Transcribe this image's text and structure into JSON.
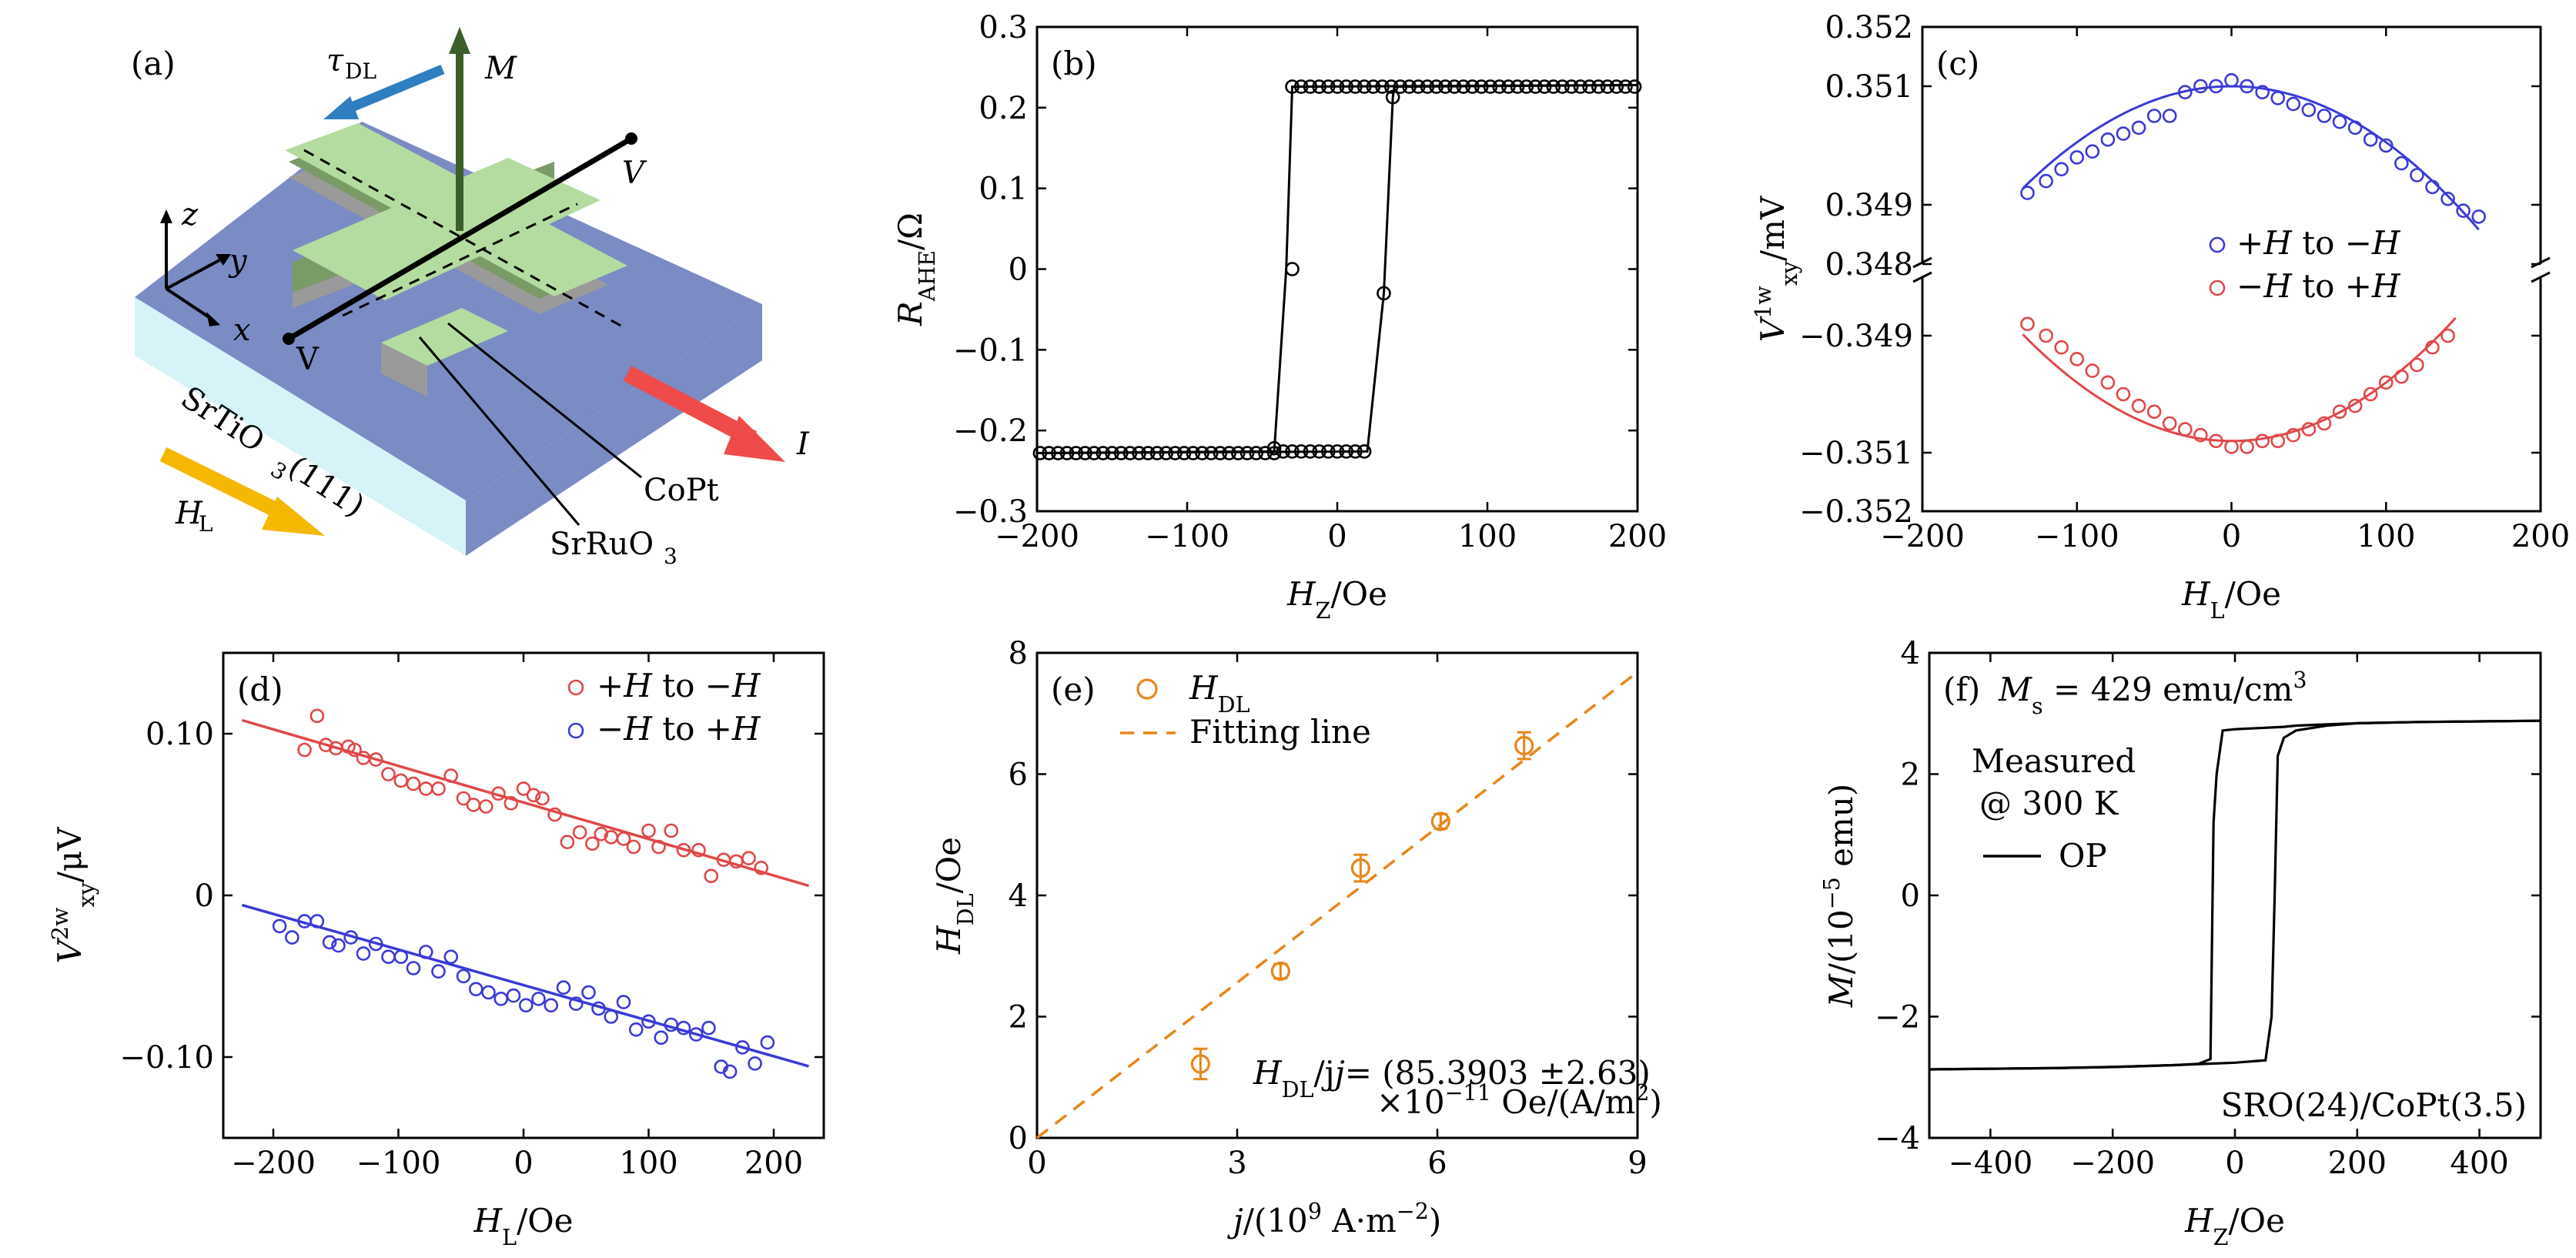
{
  "figure": {
    "panel_a": {
      "label": "(a)",
      "labels": {
        "tau": "τ",
        "tau_sub": "DL",
        "m": "M",
        "v_top": "V",
        "v_bottom": "V",
        "z": "z",
        "y": "y",
        "x": "x",
        "substrate_main": "SrTiO",
        "substrate_sub": "3",
        "substrate_tail": "(111)",
        "current": "I",
        "field": "H",
        "field_sub": "L",
        "copt": "CoPt",
        "sro_main": "SrRuO",
        "sro_sub": "3"
      },
      "colors": {
        "substrate_top": "#7b8bc4",
        "substrate_front": "#d6f4f8",
        "copt": "#b4dca0",
        "copt_side": "#7a9a66",
        "sro_side": "#9a9a9a",
        "m_arrow": "#3b5e2a",
        "tau_arrow": "#2f7fc0",
        "current_arrow": "#ef4b4b",
        "field_arrow": "#f5b800"
      }
    }
  },
  "chart_data": [
    {
      "panel": "(b)",
      "type": "line",
      "xlabel_main": "H",
      "xlabel_sub": "Z",
      "xlabel_tail": "/Oe",
      "ylabel_main": "R",
      "ylabel_sub": "AHE",
      "ylabel_tail": "/Ω",
      "xlim": [
        -200,
        200
      ],
      "ylim": [
        -0.3,
        0.3
      ],
      "xticks": [
        -200,
        -100,
        0,
        100,
        200
      ],
      "yticks": [
        -0.3,
        -0.2,
        -0.1,
        0,
        0.1,
        0.2,
        0.3
      ],
      "xtick_labels": [
        "−200",
        "−100",
        "0",
        "100",
        "200"
      ],
      "ytick_labels": [
        "−0.3",
        "−0.2",
        "−0.1",
        "0",
        "0.1",
        "0.2",
        "0.3"
      ],
      "color": "#000000",
      "series": [
        {
          "x": [
            200,
            190,
            180,
            170,
            160,
            150,
            140,
            130,
            120,
            110,
            100,
            90,
            80,
            70,
            60,
            50,
            45,
            40,
            35,
            30,
            25,
            22,
            20,
            0,
            -20,
            -40,
            -60,
            -80,
            -100,
            -120,
            -140,
            -160,
            -180,
            -200
          ],
          "y": [
            0.228,
            0.228,
            0.228,
            0.228,
            0.228,
            0.228,
            0.228,
            0.228,
            0.228,
            0.228,
            0.228,
            0.228,
            0.228,
            0.228,
            0.228,
            0.228,
            0.228,
            0.228,
            0.228,
            0.228,
            0.228,
            0.228,
            0.228,
            0.228,
            0.228,
            0.228,
            0.228,
            0.228,
            0.228,
            0.228,
            0.228,
            0.228,
            0.228,
            0.228
          ]
        }
      ],
      "markers_upper": {
        "x": [
          -30,
          -24,
          -18,
          -12,
          -6,
          0,
          6,
          12,
          18,
          24,
          30,
          36,
          42,
          48,
          54,
          60,
          66,
          72,
          78,
          84,
          90,
          96,
          102,
          108,
          114,
          120,
          126,
          132,
          138,
          144,
          150,
          156,
          162,
          168,
          174,
          180,
          186,
          192,
          198
        ],
        "y": [
          0.226,
          0.226,
          0.226,
          0.226,
          0.226,
          0.226,
          0.226,
          0.226,
          0.226,
          0.226,
          0.226,
          0.226,
          0.226,
          0.226,
          0.226,
          0.226,
          0.226,
          0.226,
          0.226,
          0.226,
          0.226,
          0.226,
          0.226,
          0.226,
          0.226,
          0.226,
          0.226,
          0.226,
          0.226,
          0.226,
          0.226,
          0.226,
          0.226,
          0.226,
          0.226,
          0.226,
          0.226,
          0.226,
          0.226
        ]
      },
      "markers_lower": {
        "x": [
          -198,
          -192,
          -186,
          -180,
          -174,
          -168,
          -162,
          -156,
          -150,
          -144,
          -138,
          -132,
          -126,
          -120,
          -114,
          -108,
          -102,
          -96,
          -90,
          -84,
          -78,
          -72,
          -66,
          -60,
          -54,
          -48,
          -42,
          -36,
          -30,
          -24,
          -18,
          -12,
          -6,
          0,
          6,
          12,
          18
        ],
        "y": [
          -0.228,
          -0.228,
          -0.228,
          -0.228,
          -0.228,
          -0.228,
          -0.228,
          -0.228,
          -0.228,
          -0.228,
          -0.228,
          -0.228,
          -0.228,
          -0.228,
          -0.228,
          -0.228,
          -0.228,
          -0.228,
          -0.228,
          -0.228,
          -0.228,
          -0.228,
          -0.228,
          -0.228,
          -0.228,
          -0.228,
          -0.228,
          -0.226,
          -0.226,
          -0.226,
          -0.226,
          -0.226,
          -0.226,
          -0.226,
          -0.226,
          -0.226,
          -0.226
        ]
      },
      "markers_transition": {
        "x": [
          -42,
          -30,
          31,
          37
        ],
        "y": [
          -0.222,
          0.0,
          -0.03,
          0.213
        ]
      },
      "loop_down": {
        "x": [
          200,
          -30,
          -34,
          -42,
          -200
        ],
        "y": [
          0.228,
          0.226,
          0.0,
          -0.226,
          -0.228
        ]
      },
      "loop_up": {
        "x": [
          -200,
          20,
          31,
          37,
          38,
          200
        ],
        "y": [
          -0.228,
          -0.226,
          -0.03,
          0.213,
          0.226,
          0.228
        ]
      }
    },
    {
      "panel": "(c)",
      "type": "scatter",
      "xlabel_main": "H",
      "xlabel_sub": "L",
      "xlabel_tail": "/Oe",
      "ylabel_main": "V",
      "ylabel_sup": "1w",
      "ylabel_sub": "xy",
      "ylabel_tail": "/mV",
      "xlim": [
        -200,
        200
      ],
      "xticks": [
        -200,
        -100,
        0,
        100,
        200
      ],
      "xtick_labels": [
        "−200",
        "−100",
        "0",
        "100",
        "200"
      ],
      "upper_ylim": [
        0.348,
        0.352
      ],
      "upper_yticks": [
        0.348,
        0.349,
        0.351,
        0.352
      ],
      "upper_ytick_labels": [
        "0.348",
        "0.349",
        "0.351",
        "0.352"
      ],
      "lower_ylim": [
        -0.352,
        -0.348
      ],
      "lower_yticks": [
        -0.349,
        -0.351,
        -0.352
      ],
      "lower_ytick_labels": [
        "−0.349",
        "−0.351",
        "−0.352"
      ],
      "legend": [
        {
          "marker_label": "+H to −H",
          "color": "#3a3ad8"
        },
        {
          "marker_label": "−H to +H",
          "color": "#e04848"
        }
      ],
      "series": [
        {
          "name": "+H to −H",
          "color": "#3a3ad8",
          "branch": "upper",
          "x": [
            -132,
            -120,
            -110,
            -100,
            -90,
            -80,
            -70,
            -60,
            -50,
            -40,
            -30,
            -20,
            -10,
            0,
            10,
            20,
            30,
            40,
            50,
            60,
            70,
            80,
            90,
            100,
            110,
            120,
            130,
            140,
            150,
            160
          ],
          "y": [
            0.3492,
            0.3494,
            0.3496,
            0.3498,
            0.3499,
            0.3501,
            0.3502,
            0.3503,
            0.3505,
            0.3505,
            0.3509,
            0.351,
            0.351,
            0.3511,
            0.351,
            0.3509,
            0.3508,
            0.3507,
            0.3506,
            0.3505,
            0.3504,
            0.3503,
            0.3501,
            0.35,
            0.3497,
            0.3495,
            0.3493,
            0.3491,
            0.3489,
            0.3488
          ],
          "fit": {
            "x": [
              -135,
              160
            ],
            "a": 0.351,
            "b": -9.45e-08
          }
        },
        {
          "name": "−H to +H",
          "color": "#e04848",
          "branch": "lower",
          "x": [
            -132,
            -120,
            -110,
            -100,
            -90,
            -80,
            -70,
            -60,
            -50,
            -40,
            -30,
            -20,
            -10,
            0,
            10,
            20,
            30,
            40,
            50,
            60,
            70,
            80,
            90,
            100,
            110,
            120,
            130,
            140
          ],
          "y": [
            -0.3488,
            -0.349,
            -0.3492,
            -0.3494,
            -0.3496,
            -0.3498,
            -0.35,
            -0.3502,
            -0.3503,
            -0.3505,
            -0.3506,
            -0.3507,
            -0.3508,
            -0.3509,
            -0.3509,
            -0.3508,
            -0.3508,
            -0.3507,
            -0.3506,
            -0.3505,
            -0.3503,
            -0.3502,
            -0.35,
            -0.3498,
            -0.3497,
            -0.3495,
            -0.3492,
            -0.349
          ],
          "fit": {
            "x": [
              -135,
              145
            ],
            "a": -0.3508,
            "b": 1e-07
          }
        }
      ]
    },
    {
      "panel": "(d)",
      "type": "scatter",
      "xlabel_main": "H",
      "xlabel_sub": "L",
      "xlabel_tail": "/Oe",
      "ylabel_main": "V",
      "ylabel_sup": "2w",
      "ylabel_sub": "xy",
      "ylabel_tail": "/μV",
      "xlim": [
        -240,
        240
      ],
      "ylim": [
        -0.15,
        0.15
      ],
      "xticks": [
        -200,
        -100,
        0,
        100,
        200
      ],
      "xtick_labels": [
        "−200",
        "−100",
        "0",
        "100",
        "200"
      ],
      "yticks": [
        -0.1,
        0,
        0.1
      ],
      "ytick_labels": [
        "−0.10",
        "0",
        "0.10"
      ],
      "legend": [
        {
          "marker_label": "+H to −H",
          "color": "#e04848"
        },
        {
          "marker_label": "−H to +H",
          "color": "#3a3ad8"
        }
      ],
      "series": [
        {
          "name": "+H to −H",
          "color": "#e04848",
          "x": [
            -175,
            -165,
            -158,
            -150,
            -140,
            -135,
            -128,
            -118,
            -108,
            -98,
            -88,
            -78,
            -68,
            -58,
            -48,
            -40,
            -30,
            -20,
            -10,
            0,
            8,
            15,
            25,
            35,
            45,
            55,
            62,
            70,
            80,
            88,
            100,
            108,
            118,
            128,
            140,
            150,
            160,
            170,
            180,
            190
          ],
          "y": [
            0.09,
            0.111,
            0.093,
            0.091,
            0.092,
            0.09,
            0.085,
            0.084,
            0.075,
            0.071,
            0.069,
            0.066,
            0.066,
            0.074,
            0.06,
            0.056,
            0.055,
            0.063,
            0.057,
            0.066,
            0.062,
            0.06,
            0.05,
            0.033,
            0.039,
            0.032,
            0.038,
            0.036,
            0.035,
            0.03,
            0.04,
            0.03,
            0.04,
            0.028,
            0.028,
            0.012,
            0.022,
            0.021,
            0.023,
            0.017
          ],
          "fit": {
            "x": [
              -225,
              228
            ],
            "a": 0.0575,
            "b": -0.000226
          }
        },
        {
          "name": "−H to +H",
          "color": "#3a3ad8",
          "x": [
            -195,
            -185,
            -175,
            -165,
            -155,
            -148,
            -138,
            -128,
            -118,
            -108,
            -98,
            -88,
            -78,
            -68,
            -58,
            -48,
            -38,
            -28,
            -18,
            -8,
            2,
            12,
            22,
            32,
            42,
            52,
            60,
            70,
            80,
            90,
            100,
            110,
            118,
            128,
            138,
            148,
            158,
            165,
            175,
            185,
            195
          ],
          "y": [
            -0.019,
            -0.026,
            -0.016,
            -0.016,
            -0.029,
            -0.031,
            -0.026,
            -0.036,
            -0.03,
            -0.038,
            -0.038,
            -0.045,
            -0.035,
            -0.047,
            -0.038,
            -0.05,
            -0.058,
            -0.06,
            -0.064,
            -0.062,
            -0.068,
            -0.064,
            -0.068,
            -0.057,
            -0.067,
            -0.06,
            -0.07,
            -0.075,
            -0.066,
            -0.083,
            -0.078,
            -0.088,
            -0.08,
            -0.082,
            -0.086,
            -0.082,
            -0.106,
            -0.109,
            -0.094,
            -0.104,
            -0.091
          ],
          "fit": {
            "x": [
              -225,
              228
            ],
            "a": -0.0555,
            "b": -0.00022
          }
        }
      ]
    },
    {
      "panel": "(e)",
      "type": "scatter",
      "xlabel_main": "j",
      "xlabel_tail": "/(10",
      "xlabel_sup": "9",
      "xlabel_tail2": " A·m",
      "xlabel_sup2": "−2",
      "xlabel_tail3": ")",
      "ylabel_main": "H",
      "ylabel_sub": "DL",
      "ylabel_tail": "/Oe",
      "xlim": [
        0,
        9
      ],
      "ylim": [
        0,
        8
      ],
      "xticks": [
        0,
        3,
        6,
        9
      ],
      "xtick_labels": [
        "0",
        "3",
        "6",
        "9"
      ],
      "yticks": [
        0,
        2,
        4,
        6,
        8
      ],
      "ytick_labels": [
        "0",
        "2",
        "4",
        "6",
        "8"
      ],
      "color": "#e8861a",
      "legend": [
        {
          "marker_label_main": "H",
          "marker_label_sub": "DL",
          "kind": "marker"
        },
        {
          "line_label": "Fitting line",
          "kind": "dashed"
        }
      ],
      "series": [
        {
          "name": "H_DL",
          "x": [
            2.45,
            3.65,
            4.85,
            6.05,
            7.3
          ],
          "y": [
            1.22,
            2.75,
            4.45,
            5.22,
            6.47
          ],
          "err": [
            0.25,
            0.12,
            0.22,
            0.12,
            0.22
          ]
        }
      ],
      "fit": {
        "slope": 0.8539,
        "intercept": 0,
        "x": [
          0,
          9
        ]
      },
      "annotation_line1_main": "H",
      "annotation_line1_sub": "DL",
      "annotation_line1_tail": "/j = (85.3903 ±2.63)",
      "annotation_line2": "×10",
      "annotation_line2_sup": "−11",
      "annotation_line2_tail": " Oe/(A/m",
      "annotation_line2_sup2": "2",
      "annotation_line2_end": ")"
    },
    {
      "panel": "(f)",
      "type": "line",
      "xlabel_main": "H",
      "xlabel_sub": "Z",
      "xlabel_tail": "/Oe",
      "ylabel_main": "M",
      "ylabel_tail": "/(10",
      "ylabel_sup": "−5",
      "ylabel_tail2": " emu)",
      "xlim": [
        -500,
        500
      ],
      "ylim": [
        -4,
        4
      ],
      "xticks": [
        -400,
        -200,
        0,
        200,
        400
      ],
      "xtick_labels": [
        "−400",
        "−200",
        "0",
        "200",
        "400"
      ],
      "yticks": [
        -4,
        -2,
        0,
        2,
        4
      ],
      "ytick_labels": [
        "−4",
        "−2",
        "0",
        "2",
        "4"
      ],
      "color": "#000000",
      "title_main": "M",
      "title_sub": "s",
      "title_tail": " = 429 emu/cm",
      "title_sup": "3",
      "note_line1": "Measured",
      "note_line2": "@ 300 K",
      "legend": [
        {
          "line_label": "OP"
        }
      ],
      "sample_label": "SRO(24)/CoPt(3.5)",
      "branch_down": {
        "x": [
          500,
          400,
          300,
          200,
          150,
          100,
          80,
          0,
          -20,
          -30,
          -35,
          -40,
          -60,
          -100,
          -200,
          -300,
          -400,
          -500
        ],
        "y": [
          2.88,
          2.87,
          2.86,
          2.84,
          2.82,
          2.8,
          2.78,
          2.74,
          2.72,
          2.0,
          1.2,
          -2.7,
          -2.78,
          -2.8,
          -2.83,
          -2.85,
          -2.86,
          -2.87
        ]
      },
      "branch_up": {
        "x": [
          -500,
          -400,
          -300,
          -200,
          -100,
          0,
          50,
          60,
          65,
          70,
          80,
          100,
          150,
          200,
          300,
          400,
          500
        ],
        "y": [
          -2.87,
          -2.86,
          -2.85,
          -2.83,
          -2.8,
          -2.76,
          -2.72,
          -2.0,
          0,
          2.3,
          2.6,
          2.72,
          2.8,
          2.84,
          2.86,
          2.87,
          2.88
        ]
      }
    }
  ]
}
